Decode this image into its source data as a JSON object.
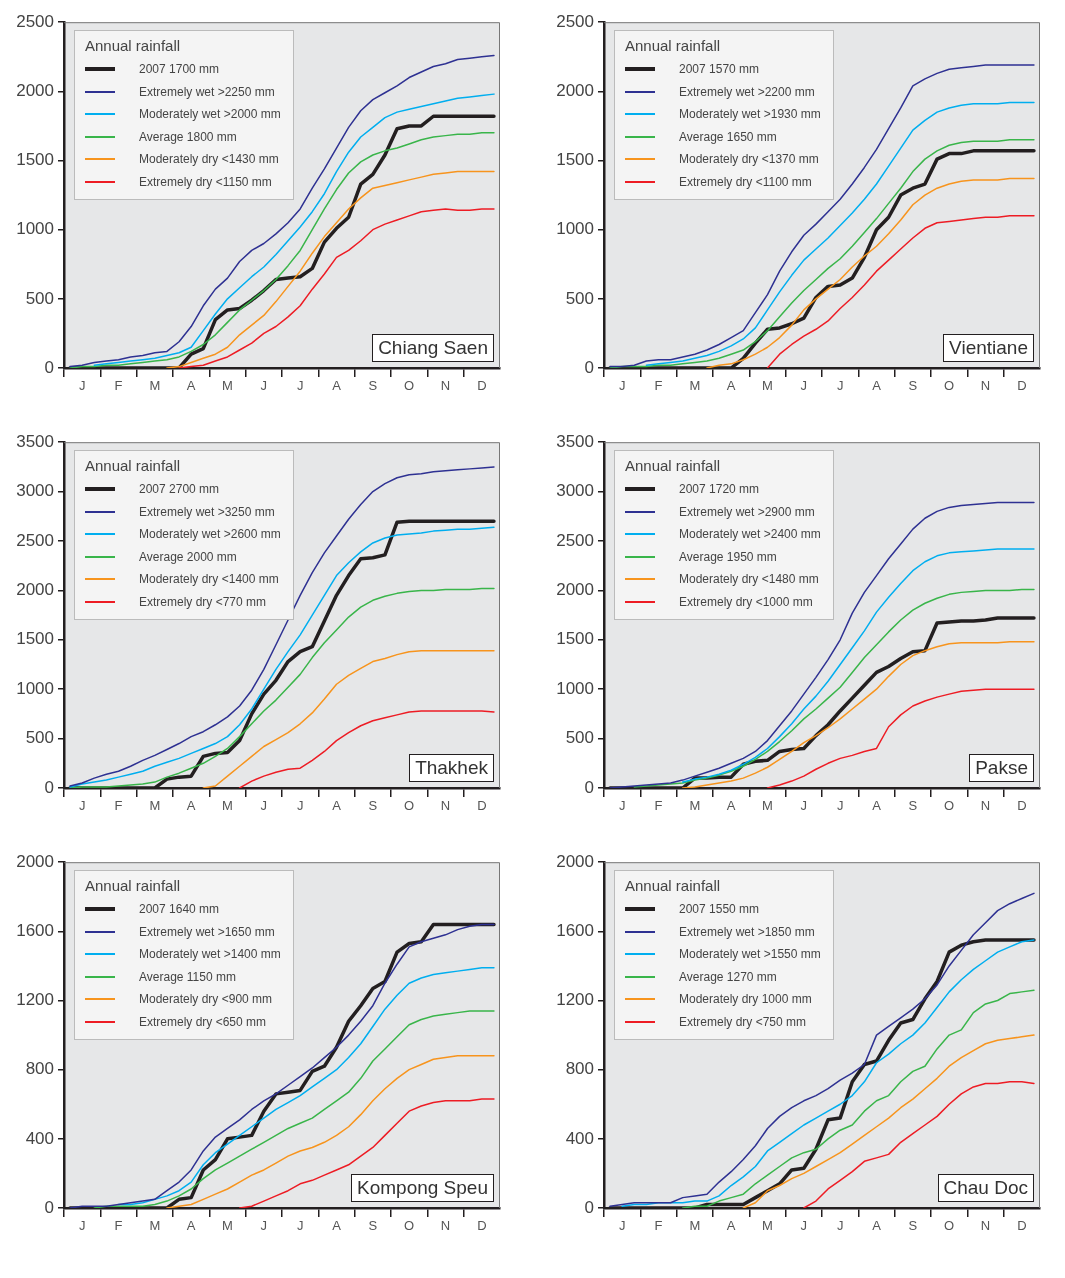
{
  "chart_data": [
    {
      "type": "line",
      "title": "Chiang Saen",
      "legend_title": "Annual rainfall",
      "legend": "top left",
      "ylim": [
        0,
        2500
      ],
      "yticks": [
        0,
        500,
        1000,
        1500,
        2000,
        2500
      ],
      "categories": [
        null,
        "J",
        null,
        null,
        "F",
        null,
        null,
        "M",
        null,
        null,
        "A",
        null,
        null,
        "M",
        null,
        null,
        "J",
        null,
        null,
        "J",
        null,
        null,
        "A",
        null,
        null,
        "S",
        null,
        null,
        "O",
        null,
        null,
        "N",
        null,
        null,
        "D",
        null
      ],
      "series": [
        {
          "name": "2007 1700 mm",
          "color": "#231f20",
          "values": [
            0,
            0,
            0,
            0,
            0,
            0,
            0,
            0,
            0,
            0,
            100,
            140,
            350,
            420,
            430,
            490,
            560,
            640,
            650,
            660,
            720,
            910,
            1010,
            1090,
            1330,
            1400,
            1540,
            1730,
            1750,
            1750,
            1820,
            1820,
            1820,
            1820,
            1820,
            1820
          ]
        },
        {
          "name": "Extremely wet >2250 mm",
          "color": "#2e3192",
          "values": [
            10,
            20,
            40,
            50,
            60,
            80,
            90,
            110,
            120,
            190,
            300,
            450,
            570,
            650,
            770,
            850,
            900,
            970,
            1050,
            1150,
            1300,
            1440,
            1590,
            1740,
            1860,
            1940,
            1990,
            2040,
            2100,
            2140,
            2180,
            2200,
            2230,
            2240,
            2250,
            2260
          ]
        },
        {
          "name": "Moderately wet >2000 mm",
          "color": "#00aeef",
          "values": [
            null,
            null,
            20,
            30,
            40,
            50,
            60,
            70,
            90,
            110,
            150,
            270,
            390,
            500,
            580,
            660,
            730,
            820,
            920,
            1020,
            1130,
            1260,
            1420,
            1560,
            1670,
            1740,
            1810,
            1850,
            1870,
            1890,
            1910,
            1930,
            1950,
            1960,
            1970,
            1980
          ]
        },
        {
          "name": "Average 1800 mm",
          "color": "#39b54a",
          "values": [
            0,
            10,
            10,
            20,
            20,
            30,
            40,
            50,
            60,
            80,
            120,
            170,
            240,
            330,
            420,
            490,
            560,
            640,
            740,
            850,
            1000,
            1150,
            1290,
            1410,
            1490,
            1540,
            1570,
            1590,
            1620,
            1650,
            1670,
            1680,
            1690,
            1690,
            1700,
            1700
          ]
        },
        {
          "name": "Moderately dry <1430 mm",
          "color": "#f7941d",
          "values": [
            null,
            null,
            null,
            null,
            null,
            null,
            null,
            null,
            0,
            10,
            40,
            70,
            100,
            150,
            240,
            310,
            380,
            480,
            590,
            700,
            830,
            950,
            1050,
            1150,
            1230,
            1300,
            1320,
            1340,
            1360,
            1380,
            1400,
            1410,
            1420,
            1420,
            1420,
            1420
          ]
        },
        {
          "name": "Extremely dry <1150 mm",
          "color": "#ed1c24",
          "values": [
            null,
            null,
            null,
            null,
            null,
            null,
            null,
            null,
            null,
            0,
            10,
            20,
            50,
            80,
            130,
            180,
            250,
            300,
            370,
            450,
            570,
            680,
            800,
            850,
            920,
            1000,
            1040,
            1070,
            1100,
            1130,
            1140,
            1150,
            1140,
            1140,
            1150,
            1150
          ]
        }
      ]
    },
    {
      "type": "line",
      "title": "Vientiane",
      "legend_title": "Annual rainfall",
      "legend": "top left",
      "ylim": [
        0,
        2500
      ],
      "yticks": [
        0,
        500,
        1000,
        1500,
        2000,
        2500
      ],
      "categories": [
        null,
        "J",
        null,
        null,
        "F",
        null,
        null,
        "M",
        null,
        null,
        "A",
        null,
        null,
        "M",
        null,
        null,
        "J",
        null,
        null,
        "J",
        null,
        null,
        "A",
        null,
        null,
        "S",
        null,
        null,
        "O",
        null,
        null,
        "N",
        null,
        null,
        "D",
        null
      ],
      "series": [
        {
          "name": "2007 1570 mm",
          "color": "#231f20",
          "values": [
            0,
            0,
            0,
            0,
            0,
            0,
            0,
            0,
            0,
            0,
            0,
            70,
            180,
            280,
            290,
            320,
            360,
            510,
            590,
            600,
            650,
            800,
            1000,
            1090,
            1250,
            1300,
            1330,
            1510,
            1550,
            1550,
            1570,
            1570,
            1570,
            1570,
            1570,
            1570
          ]
        },
        {
          "name": "Extremely wet >2200 mm",
          "color": "#2e3192",
          "values": [
            10,
            10,
            20,
            50,
            60,
            60,
            80,
            100,
            130,
            170,
            220,
            270,
            400,
            530,
            700,
            840,
            960,
            1040,
            1130,
            1220,
            1330,
            1450,
            1580,
            1730,
            1880,
            2040,
            2090,
            2130,
            2160,
            2170,
            2180,
            2190,
            2190,
            2190,
            2190,
            2190
          ]
        },
        {
          "name": "Moderately wet >1930 mm",
          "color": "#00aeef",
          "values": [
            null,
            null,
            null,
            20,
            30,
            40,
            50,
            70,
            90,
            120,
            160,
            210,
            290,
            420,
            550,
            670,
            780,
            860,
            940,
            1030,
            1120,
            1220,
            1330,
            1460,
            1590,
            1720,
            1790,
            1850,
            1880,
            1900,
            1910,
            1910,
            1910,
            1920,
            1920,
            1920
          ]
        },
        {
          "name": "Average 1650 mm",
          "color": "#39b54a",
          "values": [
            0,
            10,
            10,
            10,
            20,
            20,
            30,
            40,
            50,
            70,
            100,
            130,
            190,
            270,
            370,
            470,
            560,
            640,
            720,
            790,
            880,
            980,
            1080,
            1190,
            1300,
            1420,
            1510,
            1570,
            1610,
            1630,
            1640,
            1640,
            1640,
            1650,
            1650,
            1650
          ]
        },
        {
          "name": "Moderately dry <1370 mm",
          "color": "#f7941d",
          "values": [
            null,
            null,
            null,
            null,
            null,
            null,
            null,
            null,
            0,
            20,
            30,
            60,
            100,
            150,
            220,
            310,
            420,
            500,
            570,
            640,
            730,
            810,
            880,
            970,
            1070,
            1180,
            1250,
            1300,
            1330,
            1350,
            1360,
            1360,
            1360,
            1370,
            1370,
            1370
          ]
        },
        {
          "name": "Extremely dry <1100 mm",
          "color": "#ed1c24",
          "values": [
            null,
            null,
            null,
            null,
            null,
            null,
            null,
            null,
            null,
            null,
            null,
            null,
            null,
            0,
            100,
            170,
            230,
            280,
            340,
            430,
            510,
            600,
            700,
            780,
            860,
            940,
            1010,
            1050,
            1060,
            1070,
            1080,
            1090,
            1090,
            1100,
            1100,
            1100
          ]
        }
      ]
    },
    {
      "type": "line",
      "title": "Thakhek",
      "legend_title": "Annual rainfall",
      "legend": "top left",
      "ylim": [
        0,
        3500
      ],
      "yticks": [
        0,
        500,
        1000,
        1500,
        2000,
        2500,
        3000,
        3500
      ],
      "categories": [
        null,
        "J",
        null,
        null,
        "F",
        null,
        null,
        "M",
        null,
        null,
        "A",
        null,
        null,
        "M",
        null,
        null,
        "J",
        null,
        null,
        "J",
        null,
        null,
        "A",
        null,
        null,
        "S",
        null,
        null,
        "O",
        null,
        null,
        "N",
        null,
        null,
        "D",
        null
      ],
      "series": [
        {
          "name": "2007 2700 mm",
          "color": "#231f20",
          "values": [
            0,
            0,
            0,
            0,
            0,
            0,
            0,
            0,
            90,
            110,
            120,
            320,
            350,
            360,
            480,
            750,
            950,
            1090,
            1280,
            1380,
            1430,
            1690,
            1950,
            2150,
            2320,
            2330,
            2360,
            2690,
            2700,
            2700,
            2700,
            2700,
            2700,
            2700,
            2700,
            2700
          ]
        },
        {
          "name": "Extremely wet >3250 mm",
          "color": "#2e3192",
          "values": [
            20,
            50,
            100,
            140,
            170,
            220,
            280,
            330,
            390,
            450,
            520,
            570,
            640,
            720,
            830,
            990,
            1200,
            1450,
            1700,
            1950,
            2180,
            2380,
            2550,
            2720,
            2870,
            3000,
            3080,
            3140,
            3170,
            3180,
            3200,
            3210,
            3220,
            3230,
            3240,
            3250
          ]
        },
        {
          "name": "Moderately wet >2600 mm",
          "color": "#00aeef",
          "values": [
            10,
            40,
            60,
            80,
            110,
            140,
            170,
            220,
            260,
            300,
            350,
            400,
            450,
            520,
            640,
            800,
            1000,
            1200,
            1380,
            1550,
            1750,
            1950,
            2150,
            2280,
            2390,
            2480,
            2530,
            2560,
            2570,
            2580,
            2600,
            2610,
            2620,
            2620,
            2630,
            2640
          ]
        },
        {
          "name": "Average 2000 mm",
          "color": "#39b54a",
          "values": [
            0,
            10,
            10,
            10,
            20,
            30,
            40,
            60,
            110,
            150,
            200,
            250,
            320,
            400,
            520,
            650,
            780,
            890,
            1020,
            1150,
            1320,
            1470,
            1600,
            1730,
            1830,
            1900,
            1940,
            1970,
            1990,
            2000,
            2000,
            2010,
            2010,
            2010,
            2020,
            2020
          ]
        },
        {
          "name": "Moderately dry <1400 mm",
          "color": "#f7941d",
          "values": [
            null,
            null,
            null,
            null,
            null,
            null,
            null,
            null,
            null,
            null,
            null,
            0,
            20,
            120,
            220,
            320,
            420,
            490,
            560,
            650,
            760,
            900,
            1050,
            1140,
            1210,
            1280,
            1310,
            1350,
            1380,
            1390,
            1390,
            1390,
            1390,
            1390,
            1390,
            1390
          ]
        },
        {
          "name": "Extremely dry <770 mm",
          "color": "#ed1c24",
          "values": [
            null,
            null,
            null,
            null,
            null,
            null,
            null,
            null,
            null,
            null,
            null,
            null,
            null,
            null,
            0,
            70,
            120,
            160,
            190,
            200,
            280,
            370,
            480,
            560,
            630,
            680,
            710,
            740,
            770,
            780,
            780,
            780,
            780,
            780,
            780,
            770
          ]
        }
      ]
    },
    {
      "type": "line",
      "title": "Pakse",
      "legend_title": "Annual rainfall",
      "legend": "top left",
      "ylim": [
        0,
        3500
      ],
      "yticks": [
        0,
        500,
        1000,
        1500,
        2000,
        2500,
        3000,
        3500
      ],
      "categories": [
        null,
        "J",
        null,
        null,
        "F",
        null,
        null,
        "M",
        null,
        null,
        "A",
        null,
        null,
        "M",
        null,
        null,
        "J",
        null,
        null,
        "J",
        null,
        null,
        "A",
        null,
        null,
        "S",
        null,
        null,
        "O",
        null,
        null,
        "N",
        null,
        null,
        "D",
        null
      ],
      "series": [
        {
          "name": "2007 1720 mm",
          "color": "#231f20",
          "values": [
            0,
            0,
            0,
            0,
            0,
            0,
            0,
            100,
            100,
            110,
            110,
            240,
            270,
            280,
            370,
            390,
            400,
            530,
            640,
            780,
            910,
            1040,
            1170,
            1230,
            1310,
            1380,
            1390,
            1670,
            1680,
            1690,
            1690,
            1700,
            1720,
            1720,
            1720,
            1720
          ]
        },
        {
          "name": "Extremely wet >2900 mm",
          "color": "#2e3192",
          "values": [
            0,
            10,
            20,
            30,
            40,
            50,
            80,
            120,
            160,
            200,
            250,
            300,
            370,
            480,
            630,
            780,
            950,
            1120,
            1300,
            1500,
            1770,
            1980,
            2150,
            2320,
            2470,
            2620,
            2730,
            2800,
            2840,
            2860,
            2870,
            2880,
            2890,
            2890,
            2890,
            2890
          ]
        },
        {
          "name": "Moderately wet >2400 mm",
          "color": "#00aeef",
          "values": [
            null,
            null,
            null,
            null,
            null,
            null,
            60,
            90,
            110,
            140,
            180,
            240,
            310,
            400,
            520,
            650,
            800,
            930,
            1080,
            1250,
            1420,
            1590,
            1780,
            1930,
            2070,
            2200,
            2290,
            2350,
            2380,
            2390,
            2400,
            2410,
            2420,
            2420,
            2420,
            2420
          ]
        },
        {
          "name": "Average 1950 mm",
          "color": "#39b54a",
          "values": [
            null,
            null,
            10,
            20,
            30,
            40,
            50,
            80,
            100,
            130,
            170,
            220,
            290,
            370,
            470,
            580,
            700,
            800,
            910,
            1020,
            1170,
            1320,
            1450,
            1580,
            1700,
            1800,
            1870,
            1920,
            1960,
            1980,
            1990,
            2000,
            2000,
            2000,
            2010,
            2010
          ]
        },
        {
          "name": "Moderately dry <1480 mm",
          "color": "#f7941d",
          "values": [
            null,
            null,
            null,
            null,
            null,
            null,
            0,
            10,
            30,
            50,
            70,
            100,
            150,
            210,
            290,
            370,
            460,
            530,
            610,
            700,
            800,
            900,
            1000,
            1130,
            1250,
            1340,
            1390,
            1430,
            1460,
            1470,
            1470,
            1470,
            1470,
            1480,
            1480,
            1480
          ]
        },
        {
          "name": "Extremely dry <1000 mm",
          "color": "#ed1c24",
          "values": [
            null,
            null,
            null,
            null,
            null,
            null,
            null,
            null,
            null,
            null,
            null,
            null,
            null,
            0,
            30,
            70,
            120,
            190,
            250,
            300,
            330,
            370,
            400,
            620,
            740,
            830,
            880,
            920,
            950,
            980,
            990,
            1000,
            1000,
            1000,
            1000,
            1000
          ]
        }
      ]
    },
    {
      "type": "line",
      "title": "Kompong Speu",
      "legend_title": "Annual rainfall",
      "legend": "top left",
      "ylim": [
        0,
        2000
      ],
      "yticks": [
        0,
        400,
        800,
        1200,
        1600,
        2000
      ],
      "categories": [
        null,
        "J",
        null,
        null,
        "F",
        null,
        null,
        "M",
        null,
        null,
        "A",
        null,
        null,
        "M",
        null,
        null,
        "J",
        null,
        null,
        "J",
        null,
        null,
        "A",
        null,
        null,
        "S",
        null,
        null,
        "O",
        null,
        null,
        "N",
        null,
        null,
        "D",
        null
      ],
      "series": [
        {
          "name": "2007 1640 mm",
          "color": "#231f20",
          "values": [
            0,
            0,
            0,
            0,
            0,
            0,
            0,
            0,
            0,
            50,
            60,
            220,
            280,
            400,
            410,
            420,
            560,
            660,
            670,
            680,
            790,
            820,
            930,
            1080,
            1170,
            1270,
            1310,
            1480,
            1530,
            1540,
            1640,
            1640,
            1640,
            1640,
            1640,
            1640
          ]
        },
        {
          "name": "Extremely wet >1650 mm",
          "color": "#2e3192",
          "values": [
            0,
            10,
            10,
            10,
            20,
            30,
            40,
            50,
            100,
            150,
            220,
            330,
            410,
            460,
            510,
            570,
            620,
            660,
            710,
            760,
            810,
            870,
            930,
            1000,
            1080,
            1170,
            1300,
            1410,
            1510,
            1540,
            1560,
            1580,
            1610,
            1630,
            1640,
            1640
          ]
        },
        {
          "name": "Moderately wet >1400 mm",
          "color": "#00aeef",
          "values": [
            null,
            null,
            null,
            null,
            20,
            20,
            30,
            50,
            70,
            100,
            150,
            250,
            320,
            370,
            420,
            470,
            520,
            570,
            610,
            650,
            700,
            750,
            800,
            870,
            950,
            1050,
            1150,
            1230,
            1300,
            1330,
            1350,
            1360,
            1370,
            1380,
            1390,
            1390
          ]
        },
        {
          "name": "Average 1150 mm",
          "color": "#39b54a",
          "values": [
            null,
            null,
            0,
            10,
            10,
            10,
            10,
            20,
            40,
            70,
            110,
            170,
            220,
            260,
            300,
            340,
            380,
            420,
            460,
            490,
            520,
            570,
            620,
            670,
            750,
            850,
            920,
            990,
            1060,
            1090,
            1110,
            1120,
            1130,
            1140,
            1140,
            1140
          ]
        },
        {
          "name": "Moderately dry <900 mm",
          "color": "#f7941d",
          "values": [
            null,
            null,
            null,
            null,
            null,
            null,
            null,
            null,
            0,
            10,
            20,
            50,
            80,
            110,
            150,
            190,
            220,
            260,
            300,
            330,
            350,
            380,
            420,
            470,
            540,
            620,
            690,
            750,
            800,
            830,
            860,
            870,
            880,
            880,
            880,
            880
          ]
        },
        {
          "name": "Extremely dry <650 mm",
          "color": "#ed1c24",
          "values": [
            null,
            null,
            null,
            null,
            null,
            null,
            null,
            null,
            null,
            null,
            null,
            null,
            null,
            null,
            0,
            10,
            40,
            70,
            100,
            140,
            160,
            190,
            220,
            250,
            300,
            350,
            420,
            490,
            560,
            590,
            610,
            620,
            620,
            620,
            630,
            630
          ]
        }
      ]
    },
    {
      "type": "line",
      "title": "Chau Doc",
      "legend_title": "Annual rainfall",
      "legend": "top left",
      "ylim": [
        0,
        2000
      ],
      "yticks": [
        0,
        400,
        800,
        1200,
        1600,
        2000
      ],
      "categories": [
        null,
        "J",
        null,
        null,
        "F",
        null,
        null,
        "M",
        null,
        null,
        "A",
        null,
        null,
        "M",
        null,
        null,
        "J",
        null,
        null,
        "J",
        null,
        null,
        "A",
        null,
        null,
        "S",
        null,
        null,
        "O",
        null,
        null,
        "N",
        null,
        null,
        "D",
        null
      ],
      "series": [
        {
          "name": "2007 1550 mm",
          "color": "#231f20",
          "values": [
            0,
            0,
            0,
            0,
            0,
            0,
            0,
            0,
            20,
            20,
            20,
            20,
            60,
            100,
            140,
            220,
            230,
            340,
            510,
            520,
            730,
            830,
            850,
            970,
            1070,
            1090,
            1210,
            1310,
            1480,
            1520,
            1540,
            1550,
            1550,
            1550,
            1550,
            1550
          ]
        },
        {
          "name": "Extremely wet >1850 mm",
          "color": "#2e3192",
          "values": [
            10,
            20,
            30,
            30,
            30,
            30,
            60,
            70,
            80,
            150,
            210,
            280,
            360,
            460,
            530,
            580,
            620,
            650,
            690,
            740,
            780,
            830,
            1000,
            1050,
            1100,
            1150,
            1210,
            1290,
            1400,
            1490,
            1580,
            1650,
            1720,
            1760,
            1790,
            1820
          ]
        },
        {
          "name": "Moderately wet >1550 mm",
          "color": "#00aeef",
          "values": [
            null,
            10,
            20,
            20,
            30,
            30,
            30,
            40,
            40,
            70,
            130,
            180,
            240,
            330,
            380,
            430,
            480,
            520,
            560,
            600,
            650,
            730,
            840,
            890,
            950,
            1000,
            1070,
            1160,
            1250,
            1320,
            1380,
            1430,
            1480,
            1510,
            1540,
            1550
          ]
        },
        {
          "name": "Average 1270 mm",
          "color": "#39b54a",
          "values": [
            null,
            null,
            null,
            null,
            null,
            null,
            0,
            10,
            10,
            40,
            60,
            80,
            140,
            190,
            240,
            290,
            320,
            340,
            400,
            450,
            480,
            560,
            620,
            650,
            730,
            790,
            820,
            920,
            1000,
            1030,
            1130,
            1180,
            1200,
            1240,
            1250,
            1260
          ]
        },
        {
          "name": "Moderately dry 1000 mm",
          "color": "#f7941d",
          "values": [
            null,
            null,
            null,
            null,
            null,
            null,
            null,
            null,
            null,
            null,
            null,
            0,
            30,
            100,
            130,
            170,
            200,
            240,
            280,
            320,
            370,
            420,
            470,
            520,
            580,
            630,
            690,
            750,
            820,
            870,
            910,
            950,
            970,
            980,
            990,
            1000
          ]
        },
        {
          "name": "Extremely dry <750 mm",
          "color": "#ed1c24",
          "values": [
            null,
            null,
            null,
            null,
            null,
            null,
            null,
            null,
            null,
            null,
            null,
            null,
            null,
            null,
            null,
            null,
            0,
            40,
            110,
            160,
            210,
            270,
            290,
            310,
            380,
            430,
            480,
            530,
            600,
            660,
            700,
            720,
            720,
            730,
            730,
            720
          ]
        }
      ]
    }
  ]
}
